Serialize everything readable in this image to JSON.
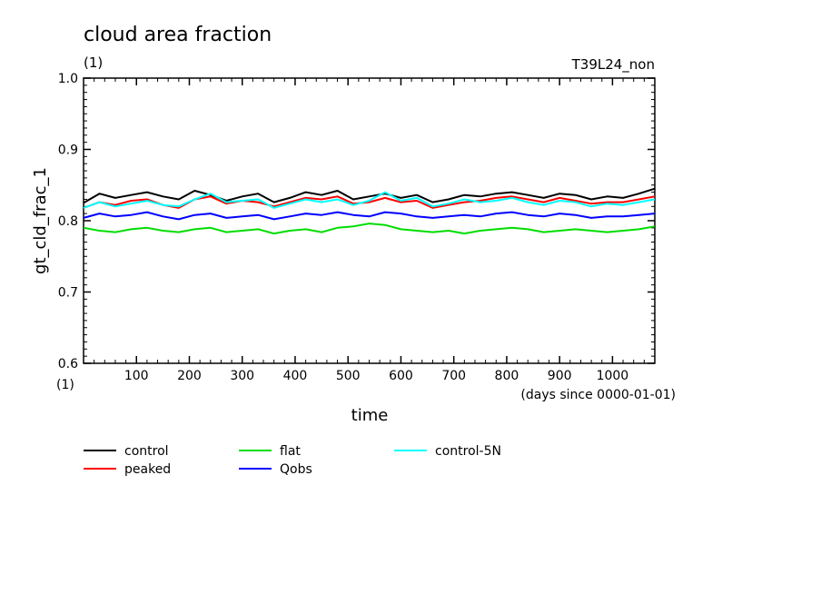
{
  "chart_data": {
    "type": "line",
    "title": "cloud area fraction",
    "unit_label": "(1)",
    "run_label": "T39L24_non",
    "xlabel": "time",
    "xunits": "(days since 0000-01-01)",
    "ylabel": "gt_cld_frac_1",
    "yunits": "(1)",
    "xlim": [
      0,
      1080
    ],
    "ylim": [
      0.6,
      1.0
    ],
    "xticks": [
      100,
      200,
      300,
      400,
      500,
      600,
      700,
      800,
      900,
      1000
    ],
    "yticks": [
      0.6,
      0.7,
      0.8,
      0.9,
      1.0
    ],
    "ytick_labels": [
      "0.6",
      "0.7",
      "0.8",
      "0.9",
      "1.0"
    ],
    "grid": false,
    "legend_position": "bottom",
    "series": [
      {
        "name": "control",
        "color": "#000000",
        "x": [
          0,
          30,
          60,
          90,
          120,
          150,
          180,
          210,
          240,
          270,
          300,
          330,
          360,
          390,
          420,
          450,
          480,
          510,
          540,
          570,
          600,
          630,
          660,
          690,
          720,
          750,
          780,
          810,
          840,
          870,
          900,
          930,
          960,
          990,
          1020,
          1050,
          1080
        ],
        "values": [
          0.825,
          0.838,
          0.832,
          0.836,
          0.84,
          0.834,
          0.83,
          0.842,
          0.836,
          0.828,
          0.834,
          0.838,
          0.826,
          0.832,
          0.84,
          0.836,
          0.842,
          0.83,
          0.834,
          0.838,
          0.832,
          0.836,
          0.826,
          0.83,
          0.836,
          0.834,
          0.838,
          0.84,
          0.836,
          0.832,
          0.838,
          0.836,
          0.83,
          0.834,
          0.832,
          0.838,
          0.845
        ]
      },
      {
        "name": "peaked",
        "color": "#ff0000",
        "x": [
          0,
          30,
          60,
          90,
          120,
          150,
          180,
          210,
          240,
          270,
          300,
          330,
          360,
          390,
          420,
          450,
          480,
          510,
          540,
          570,
          600,
          630,
          660,
          690,
          720,
          750,
          780,
          810,
          840,
          870,
          900,
          930,
          960,
          990,
          1020,
          1050,
          1080
        ],
        "values": [
          0.818,
          0.826,
          0.822,
          0.828,
          0.83,
          0.822,
          0.818,
          0.83,
          0.834,
          0.824,
          0.828,
          0.826,
          0.82,
          0.826,
          0.832,
          0.83,
          0.834,
          0.824,
          0.826,
          0.832,
          0.826,
          0.828,
          0.818,
          0.822,
          0.826,
          0.828,
          0.832,
          0.834,
          0.83,
          0.826,
          0.832,
          0.828,
          0.824,
          0.826,
          0.826,
          0.83,
          0.834
        ]
      },
      {
        "name": "flat",
        "color": "#00dd00",
        "x": [
          0,
          30,
          60,
          90,
          120,
          150,
          180,
          210,
          240,
          270,
          300,
          330,
          360,
          390,
          420,
          450,
          480,
          510,
          540,
          570,
          600,
          630,
          660,
          690,
          720,
          750,
          780,
          810,
          840,
          870,
          900,
          930,
          960,
          990,
          1020,
          1050,
          1080
        ],
        "values": [
          0.79,
          0.786,
          0.784,
          0.788,
          0.79,
          0.786,
          0.784,
          0.788,
          0.79,
          0.784,
          0.786,
          0.788,
          0.782,
          0.786,
          0.788,
          0.784,
          0.79,
          0.792,
          0.796,
          0.794,
          0.788,
          0.786,
          0.784,
          0.786,
          0.782,
          0.786,
          0.788,
          0.79,
          0.788,
          0.784,
          0.786,
          0.788,
          0.786,
          0.784,
          0.786,
          0.788,
          0.792
        ]
      },
      {
        "name": "Qobs",
        "color": "#0000ff",
        "x": [
          0,
          30,
          60,
          90,
          120,
          150,
          180,
          210,
          240,
          270,
          300,
          330,
          360,
          390,
          420,
          450,
          480,
          510,
          540,
          570,
          600,
          630,
          660,
          690,
          720,
          750,
          780,
          810,
          840,
          870,
          900,
          930,
          960,
          990,
          1020,
          1050,
          1080
        ],
        "values": [
          0.804,
          0.81,
          0.806,
          0.808,
          0.812,
          0.806,
          0.802,
          0.808,
          0.81,
          0.804,
          0.806,
          0.808,
          0.802,
          0.806,
          0.81,
          0.808,
          0.812,
          0.808,
          0.806,
          0.812,
          0.81,
          0.806,
          0.804,
          0.806,
          0.808,
          0.806,
          0.81,
          0.812,
          0.808,
          0.806,
          0.81,
          0.808,
          0.804,
          0.806,
          0.806,
          0.808,
          0.81
        ]
      },
      {
        "name": "control-5N",
        "color": "#00ffff",
        "x": [
          0,
          30,
          60,
          90,
          120,
          150,
          180,
          210,
          240,
          270,
          300,
          330,
          360,
          390,
          420,
          450,
          480,
          510,
          540,
          570,
          600,
          630,
          660,
          690,
          720,
          750,
          780,
          810,
          840,
          870,
          900,
          930,
          960,
          990,
          1020,
          1050,
          1080
        ],
        "values": [
          0.818,
          0.826,
          0.82,
          0.824,
          0.828,
          0.822,
          0.82,
          0.83,
          0.838,
          0.826,
          0.828,
          0.83,
          0.818,
          0.824,
          0.83,
          0.826,
          0.83,
          0.822,
          0.828,
          0.84,
          0.828,
          0.832,
          0.82,
          0.824,
          0.83,
          0.826,
          0.828,
          0.832,
          0.826,
          0.822,
          0.828,
          0.826,
          0.82,
          0.824,
          0.822,
          0.826,
          0.83
        ]
      }
    ]
  }
}
